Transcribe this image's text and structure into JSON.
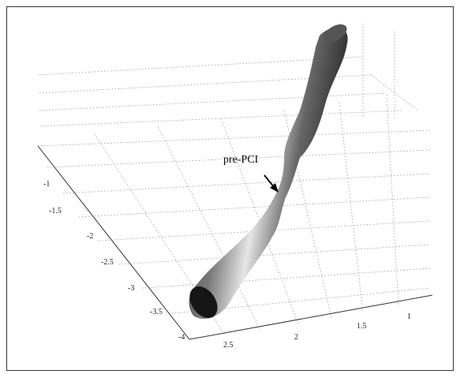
{
  "annotation": "pre-PCI",
  "axis_left_ticks": [
    "-1",
    "-1.5",
    "-2",
    "-2.5",
    "-3",
    "-3.5",
    "-4"
  ],
  "axis_bottom_ticks": [
    "2.5",
    "2",
    "1.5",
    "1"
  ]
}
